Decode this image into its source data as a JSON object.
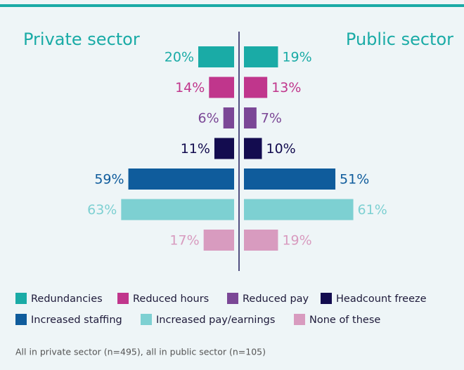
{
  "chart_data": {
    "type": "butterfly",
    "categories": [
      "Redundancies",
      "Reduced hours",
      "Reduced pay",
      "Headcount freeze",
      "Increased staffing",
      "Increased pay/earnings",
      "None of these"
    ],
    "colors": [
      "#1aaba6",
      "#c0368c",
      "#7b4796",
      "#130c4f",
      "#0f5c9c",
      "#7dd0d2",
      "#d89bbf"
    ],
    "series": [
      {
        "name": "Private sector",
        "values": [
          20,
          14,
          6,
          11,
          59,
          63,
          17
        ],
        "value_labels": [
          "20%",
          "14%",
          "6%",
          "11%",
          "59%",
          "63%",
          "17%"
        ]
      },
      {
        "name": "Public sector",
        "values": [
          19,
          13,
          7,
          10,
          51,
          61,
          19
        ],
        "value_labels": [
          "19%",
          "13%",
          "7%",
          "10%",
          "51%",
          "61%",
          "19%"
        ]
      }
    ],
    "note": "All in private sector (n=495), all in public sector (n=105)"
  }
}
